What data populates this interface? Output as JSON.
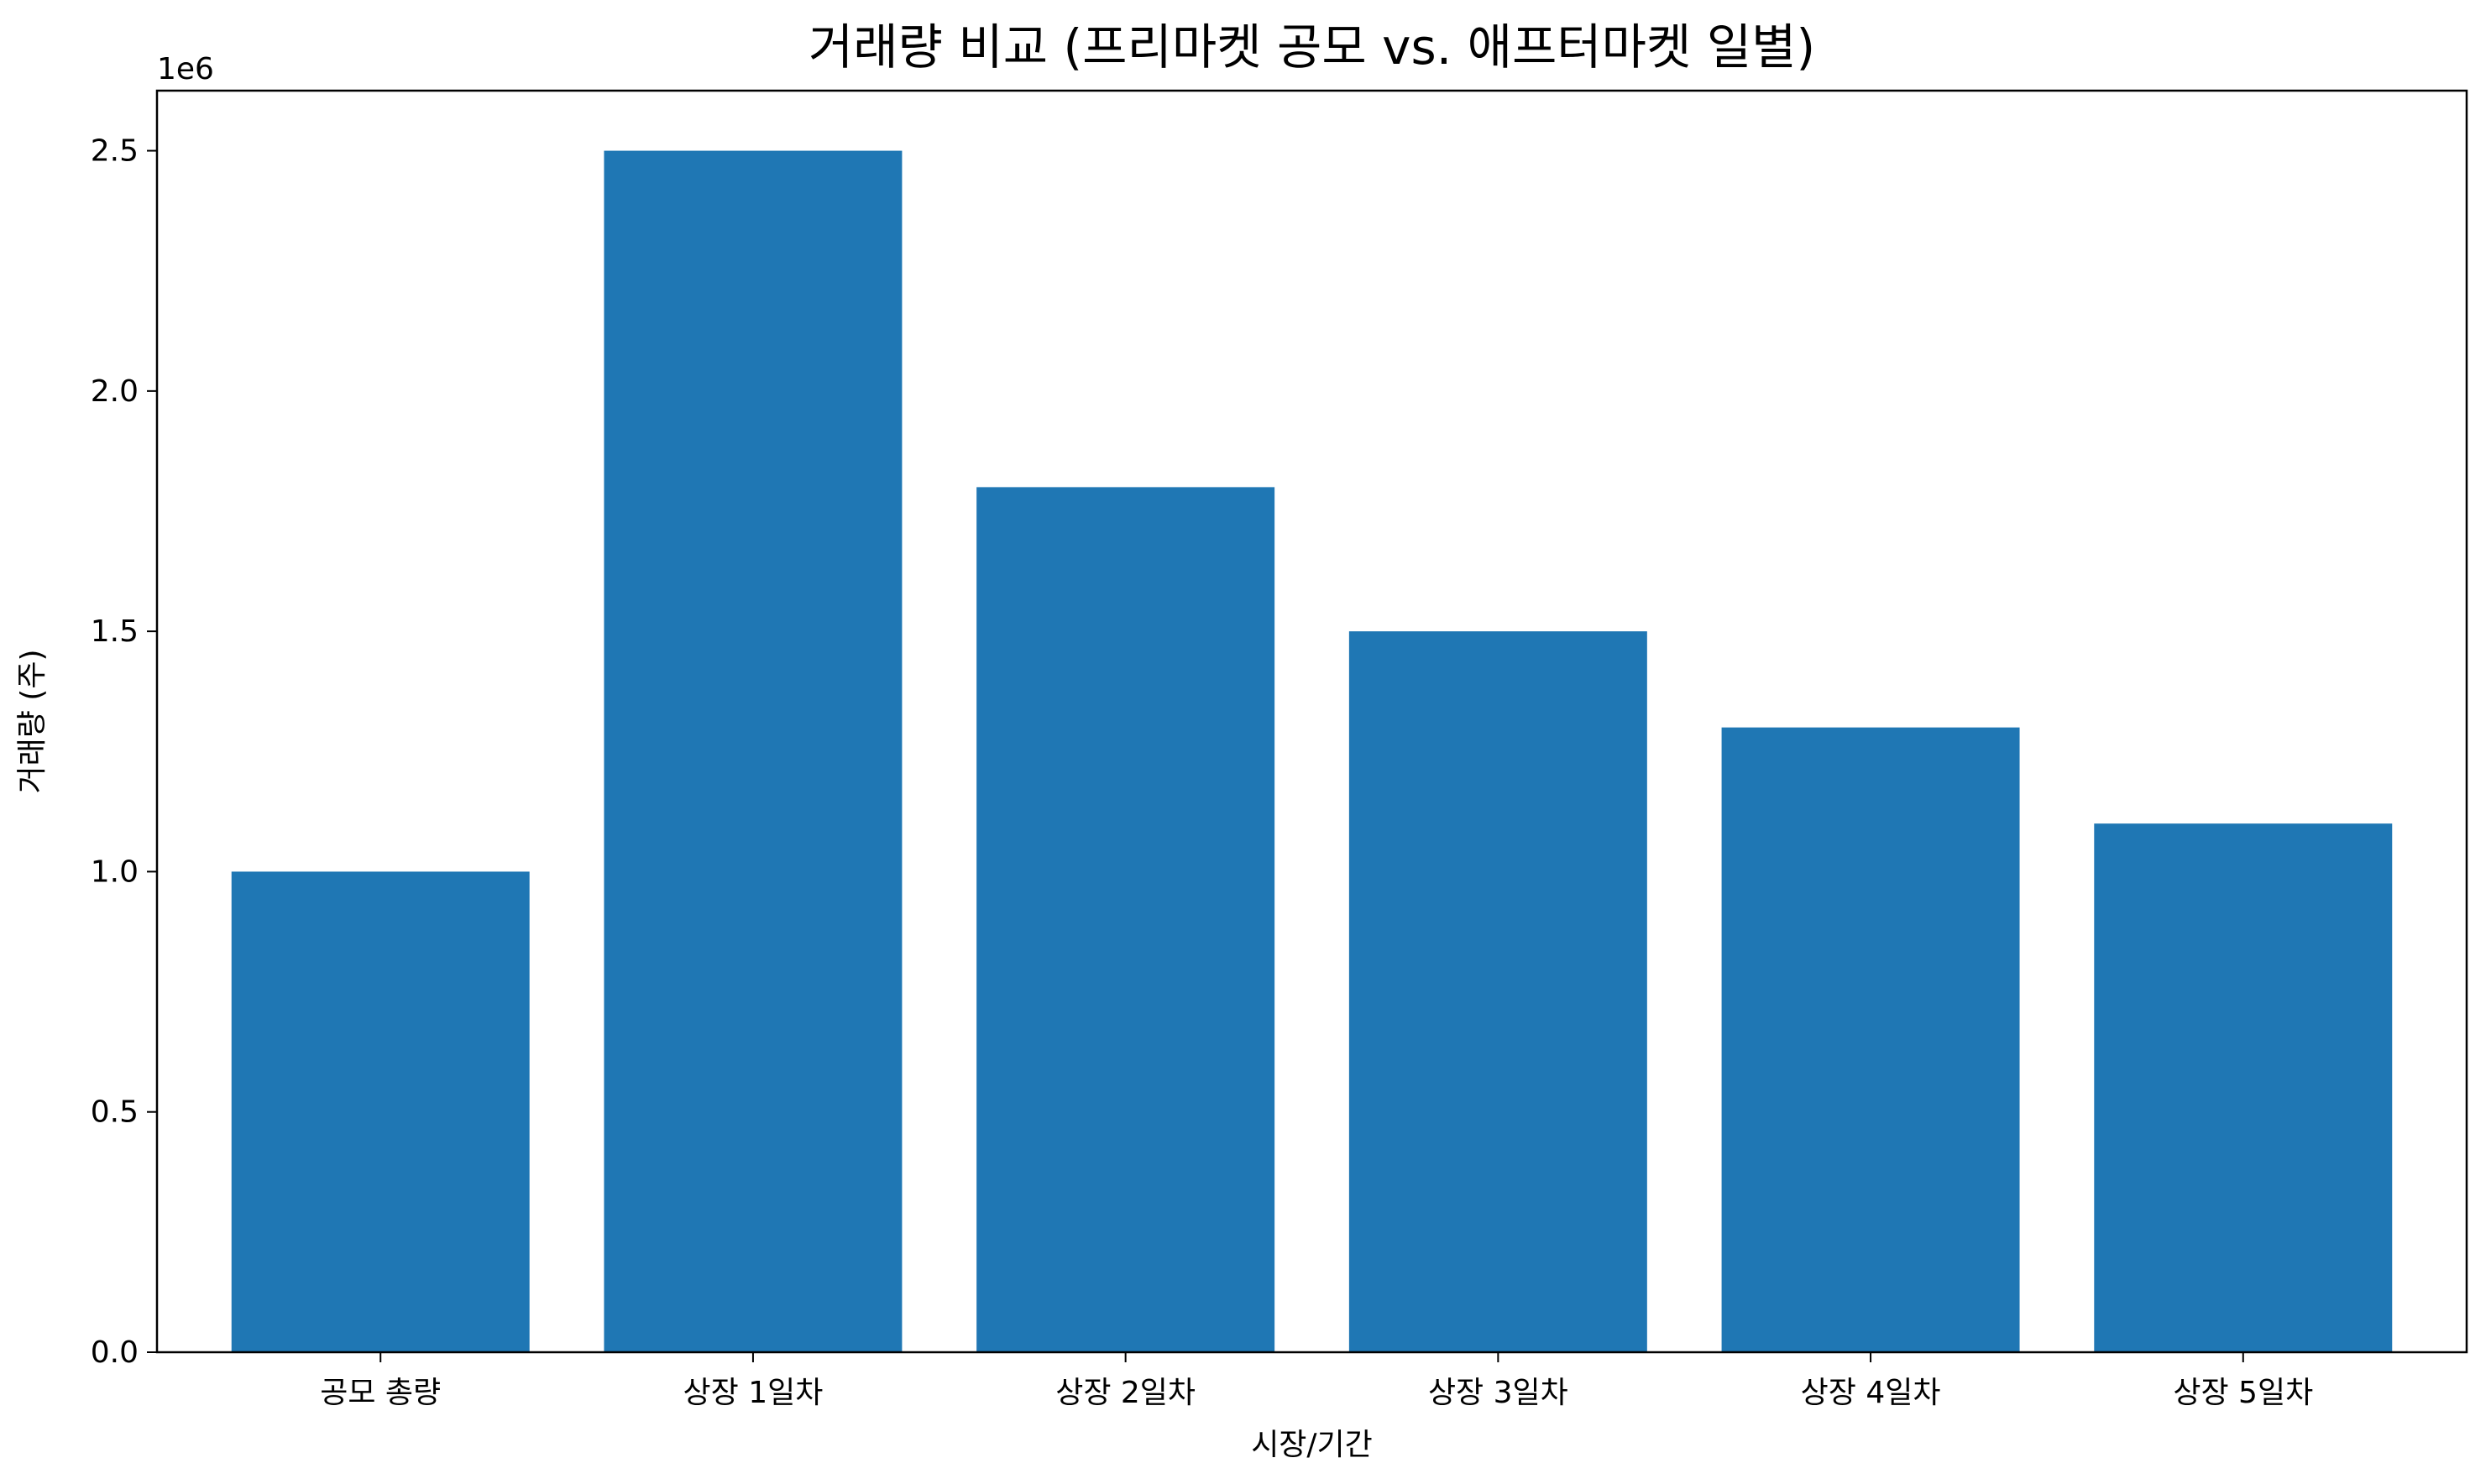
{
  "chart_data": {
    "type": "bar",
    "title": "거래량 비교 (프리마켓 공모 vs. 애프터마켓 일별)",
    "xlabel": "시장/기간",
    "ylabel": "거래량 (주)",
    "y_offset_label": "1e6",
    "categories": [
      "공모 총량",
      "상장 1일차",
      "상장 2일차",
      "상장 3일차",
      "상장 4일차",
      "상장 5일차"
    ],
    "values": [
      1000000,
      2500000,
      1800000,
      1500000,
      1300000,
      1100000
    ],
    "ylim": [
      0,
      2625000
    ],
    "yticks": [
      0,
      500000,
      1000000,
      1500000,
      2000000,
      2500000
    ],
    "ytick_labels": [
      "0.0",
      "0.5",
      "1.0",
      "1.5",
      "2.0",
      "2.5"
    ],
    "bar_color": "#1f77b4",
    "grid": false,
    "legend": false
  }
}
